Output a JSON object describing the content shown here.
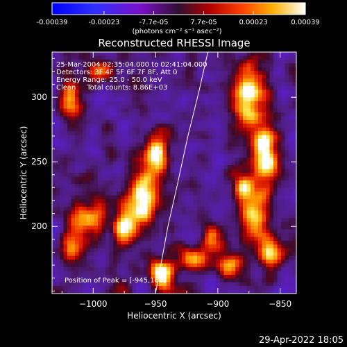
{
  "colorbar": {
    "tick_labels": [
      "-0.00039",
      "-0.00023",
      "-7.7e-05",
      "7.7e-05",
      "0.00023",
      "0.00039"
    ],
    "tick_values": [
      -0.00039,
      -0.00023,
      -7.7e-05,
      7.7e-05,
      0.00023,
      0.00039
    ],
    "range": [
      -0.00039,
      0.00039
    ],
    "units": "(photons cm⁻² s⁻¹ asec⁻²)",
    "colors": [
      "#0000ff",
      "#6a00d8",
      "#7a1a8a",
      "#3a1040",
      "#ff0000",
      "#ffa000",
      "#ffff80",
      "#ffffff"
    ]
  },
  "chart_data": {
    "type": "heatmap",
    "title": "Reconstructed RHESSI Image",
    "xlabel": "Heliocentric X (arcsec)",
    "ylabel": "Heliocentric Y (arcsec)",
    "xlim": [
      -1033,
      -837
    ],
    "ylim": [
      148,
      335
    ],
    "x_ticks": [
      -1000,
      -950,
      -900,
      -850
    ],
    "y_ticks": [
      200,
      250,
      300
    ],
    "x_tick_labels": [
      "−1000",
      "−950",
      "−900",
      "−850"
    ],
    "y_tick_labels": [
      "200",
      "250",
      "300"
    ],
    "annotations": [
      "25-Mar-2004 02:35:04.000 to 02:41:04.000",
      "Detectors: 3F 4F 5F 6F 7F 8F, Att 0",
      "Energy Range: 25.0 - 50.0 keV",
      "Clean     Total counts: 8.86E+03"
    ],
    "peak_label": "Position of Peak = [-945,161]",
    "peak": [
      -945,
      161
    ],
    "limb_curve": [
      [
        -950,
        148
      ],
      [
        -940,
        200
      ],
      [
        -933,
        230
      ],
      [
        -924,
        270
      ],
      [
        -915,
        305
      ],
      [
        -908,
        335
      ]
    ],
    "bright_sources": [
      {
        "x": -960,
        "y": 225,
        "sx": 8,
        "sy": 16,
        "amp": 0.9
      },
      {
        "x": -948,
        "y": 255,
        "sx": 7,
        "sy": 12,
        "amp": 0.75
      },
      {
        "x": -975,
        "y": 200,
        "sx": 7,
        "sy": 10,
        "amp": 0.7
      },
      {
        "x": -1005,
        "y": 205,
        "sx": 10,
        "sy": 8,
        "amp": 0.6
      },
      {
        "x": -1015,
        "y": 185,
        "sx": 8,
        "sy": 8,
        "amp": 0.55
      },
      {
        "x": -945,
        "y": 163,
        "sx": 7,
        "sy": 8,
        "amp": 1.0
      },
      {
        "x": -920,
        "y": 175,
        "sx": 8,
        "sy": 7,
        "amp": 0.55
      },
      {
        "x": -995,
        "y": 320,
        "sx": 8,
        "sy": 6,
        "amp": 0.6
      },
      {
        "x": -1018,
        "y": 300,
        "sx": 6,
        "sy": 12,
        "amp": 0.55
      },
      {
        "x": -875,
        "y": 300,
        "sx": 10,
        "sy": 18,
        "amp": 0.8
      },
      {
        "x": -862,
        "y": 255,
        "sx": 7,
        "sy": 14,
        "amp": 0.95
      },
      {
        "x": -870,
        "y": 205,
        "sx": 8,
        "sy": 14,
        "amp": 0.75
      },
      {
        "x": -880,
        "y": 230,
        "sx": 6,
        "sy": 8,
        "amp": 0.6
      },
      {
        "x": -890,
        "y": 170,
        "sx": 9,
        "sy": 9,
        "amp": 0.6
      },
      {
        "x": -858,
        "y": 180,
        "sx": 6,
        "sy": 10,
        "amp": 0.6
      },
      {
        "x": -905,
        "y": 190,
        "sx": 6,
        "sy": 8,
        "amp": 0.5
      }
    ]
  },
  "footer": {
    "timestamp": "29-Apr-2022 18:05"
  }
}
